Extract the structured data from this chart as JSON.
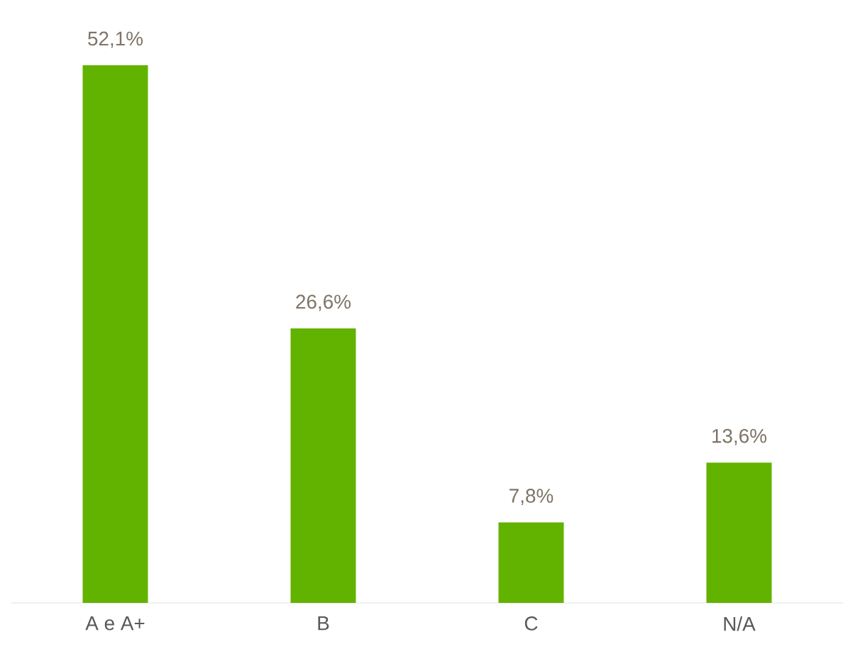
{
  "chart_data": {
    "type": "bar",
    "categories": [
      "A e A+",
      "B",
      "C",
      "N/A"
    ],
    "values": [
      52.1,
      26.6,
      7.8,
      13.6
    ],
    "value_labels": [
      "52,1%",
      "26,6%",
      "7,8%",
      "13,6%"
    ],
    "color": "#62b300"
  }
}
